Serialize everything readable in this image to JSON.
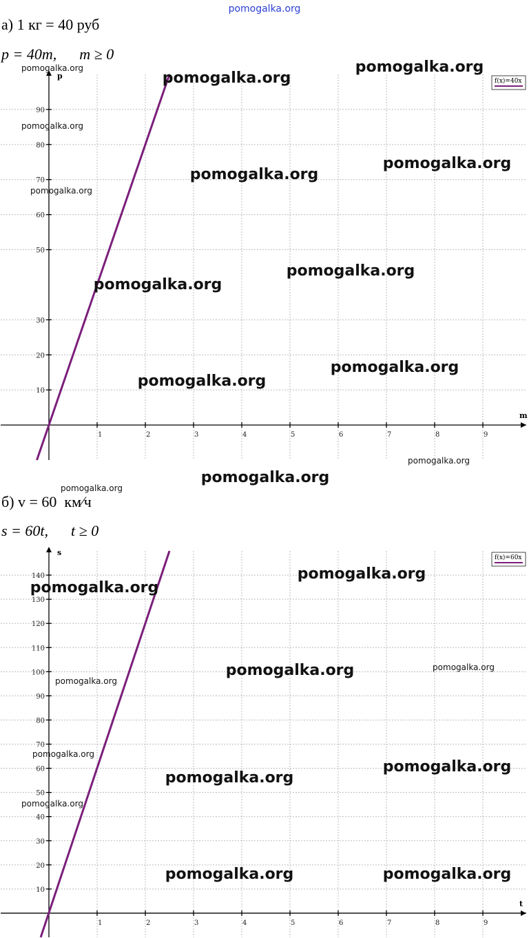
{
  "site": "pomogalka.org",
  "sections": [
    {
      "heading": "а) 1 кг = 40 руб",
      "formula": "p = 40m,      m ≥ 0"
    },
    {
      "heading": "б) v = 60  км⁄ч",
      "formula": "s = 60t,      t ≥ 0"
    }
  ],
  "chart_data": [
    {
      "type": "line",
      "x_label": "m",
      "y_label": "p",
      "x": [
        -0.25,
        2.5
      ],
      "series": [
        {
          "name": "f(x)=40x",
          "color": "#7b1e7a",
          "values": [
            -10,
            100
          ]
        }
      ],
      "xlim": [
        -1,
        9.9
      ],
      "ylim": [
        -10,
        100
      ],
      "xticks": [
        1,
        2,
        3,
        4,
        5,
        6,
        7,
        8,
        9
      ],
      "yticks": [
        10,
        20,
        30,
        50,
        60,
        70,
        80,
        90
      ],
      "grid": true,
      "legend": "upper right"
    },
    {
      "type": "line",
      "x_label": "t",
      "y_label": "s",
      "x": [
        -0.17,
        2.5
      ],
      "series": [
        {
          "name": "f(x)=60x",
          "color": "#7b1e7a",
          "values": [
            -10,
            150
          ]
        }
      ],
      "xlim": [
        -1,
        9.9
      ],
      "ylim": [
        -10,
        150
      ],
      "xticks": [
        1,
        2,
        3,
        4,
        5,
        6,
        7,
        8,
        9
      ],
      "yticks": [
        10,
        20,
        30,
        40,
        50,
        60,
        70,
        80,
        90,
        100,
        110,
        120,
        130,
        140
      ],
      "grid": true,
      "legend": "upper right"
    }
  ],
  "watermarks": [
    "pomogalka.org",
    "pomogalka.org",
    "pomogalka.org",
    "pomogalka.org",
    "pomogalka.org",
    "pomogalka.org",
    "pomogalka.org",
    "pomogalka.org",
    "pomogalka.org",
    "pomogalka.org",
    "pomogalka.org",
    "pomogalka.org",
    "pomogalka.org",
    "pomogalka.org",
    "pomogalka.org",
    "pomogalka.org",
    "pomogalka.org",
    "pomogalka.org",
    "pomogalka.org",
    "pomogalka.org",
    "pomogalka.org",
    "pomogalka.org",
    "pomogalka.org",
    "pomogalka.org",
    "pomogalka.org"
  ]
}
